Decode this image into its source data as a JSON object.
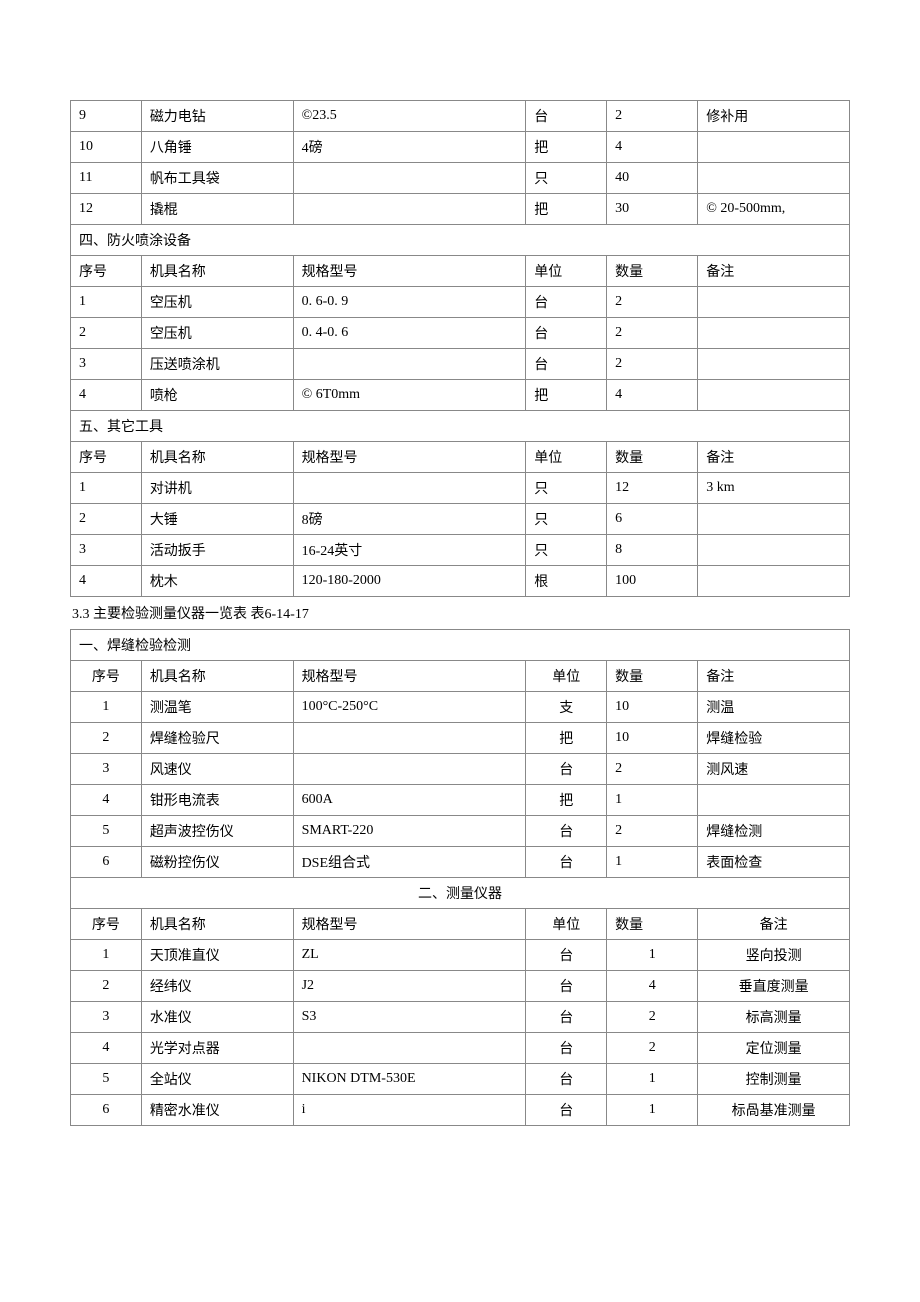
{
  "table1": {
    "rows": [
      {
        "num": "9",
        "name": "磁力电钻",
        "spec": "©23.5",
        "unit": "台",
        "qty": "2",
        "note": "修补用"
      },
      {
        "num": "10",
        "name": "八角锤",
        "spec": "4磅",
        "unit": "把",
        "qty": "4",
        "note": ""
      },
      {
        "num": "11",
        "name": "帆布工具袋",
        "spec": "",
        "unit": "只",
        "qty": "40",
        "note": ""
      },
      {
        "num": "12",
        "name": "撬棍",
        "spec": "",
        "unit": "把",
        "qty": "30",
        "note": "© 20-500mm,"
      }
    ],
    "section4": {
      "title": "四、防火喷涂设备",
      "headers": {
        "num": "序号",
        "name": "机具名称",
        "spec": "规格型号",
        "unit": "单位",
        "qty": "数量",
        "note": "备注"
      },
      "rows": [
        {
          "num": "1",
          "name": "空压机",
          "spec": "0. 6-0. 9",
          "unit": "台",
          "qty": "2",
          "note": ""
        },
        {
          "num": "2",
          "name": "空压机",
          "spec": "0. 4-0. 6",
          "unit": "台",
          "qty": "2",
          "note": ""
        },
        {
          "num": "3",
          "name": "压送喷涂机",
          "spec": "",
          "unit": "台",
          "qty": "2",
          "note": ""
        },
        {
          "num": "4",
          "name": "喷枪",
          "spec": "© 6T0mm",
          "unit": "把",
          "qty": "4",
          "note": ""
        }
      ]
    },
    "section5": {
      "title": "五、其它工具",
      "headers": {
        "num": "序号",
        "name": "机具名称",
        "spec": "规格型号",
        "unit": "单位",
        "qty": "数量",
        "note": "备注"
      },
      "rows": [
        {
          "num": "1",
          "name": "对讲机",
          "spec": "",
          "unit": "只",
          "qty": "12",
          "note": "3 km"
        },
        {
          "num": "2",
          "name": "大锤",
          "spec": "8磅",
          "unit": "只",
          "qty": "6",
          "note": ""
        },
        {
          "num": "3",
          "name": "活动扳手",
          "spec": "16-24英寸",
          "unit": "只",
          "qty": "8",
          "note": ""
        },
        {
          "num": "4",
          "name": "枕木",
          "spec": "120-180-2000",
          "unit": "根",
          "qty": "100",
          "note": ""
        }
      ]
    }
  },
  "caption": "3.3 主要检验测量仪器一览表 表6-14-17",
  "table2": {
    "section1": {
      "title": "一、焊缝检验检测",
      "headers": {
        "num": "序号",
        "name": "机具名称",
        "spec": "规格型号",
        "unit": "单位",
        "qty": "数量",
        "note": "备注"
      },
      "rows": [
        {
          "num": "1",
          "name": "测温笔",
          "spec": "100°C-250°C",
          "unit": "支",
          "qty": "10",
          "note": "测温"
        },
        {
          "num": "2",
          "name": "焊缝检验尺",
          "spec": "",
          "unit": "把",
          "qty": "10",
          "note": "焊缝检验"
        },
        {
          "num": "3",
          "name": "风速仪",
          "spec": "",
          "unit": "台",
          "qty": "2",
          "note": "测风速"
        },
        {
          "num": "4",
          "name": "钳形电流表",
          "spec": "600A",
          "unit": "把",
          "qty": "1",
          "note": ""
        },
        {
          "num": "5",
          "name": "超声波控伤仪",
          "spec": "SMART-220",
          "unit": "台",
          "qty": "2",
          "note": "焊缝检测"
        },
        {
          "num": "6",
          "name": "磁粉控伤仪",
          "spec": "DSE组合式",
          "unit": "台",
          "qty": "1",
          "note": "表面检查"
        }
      ]
    },
    "section2": {
      "title": "二、测量仪器",
      "headers": {
        "num": "序号",
        "name": "机具名称",
        "spec": "规格型号",
        "unit": "单位",
        "qty": "数量",
        "note": "备注"
      },
      "rows": [
        {
          "num": "1",
          "name": "天顶准直仪",
          "spec": "ZL",
          "unit": "台",
          "qty": "1",
          "note": "竖向投测"
        },
        {
          "num": "2",
          "name": "经纬仪",
          "spec": "J2",
          "unit": "台",
          "qty": "4",
          "note": "垂直度测量"
        },
        {
          "num": "3",
          "name": "水准仪",
          "spec": "S3",
          "unit": "台",
          "qty": "2",
          "note": "标高测量"
        },
        {
          "num": "4",
          "name": "光学对点器",
          "spec": "",
          "unit": "台",
          "qty": "2",
          "note": "定位测量"
        },
        {
          "num": "5",
          "name": "全站仪",
          "spec": "NIKON DTM-530E",
          "unit": "台",
          "qty": "1",
          "note": "控制测量"
        },
        {
          "num": "6",
          "name": "精密水准仪",
          "spec": "i",
          "unit": "台",
          "qty": "1",
          "note": "标咼基准测量"
        }
      ]
    }
  }
}
